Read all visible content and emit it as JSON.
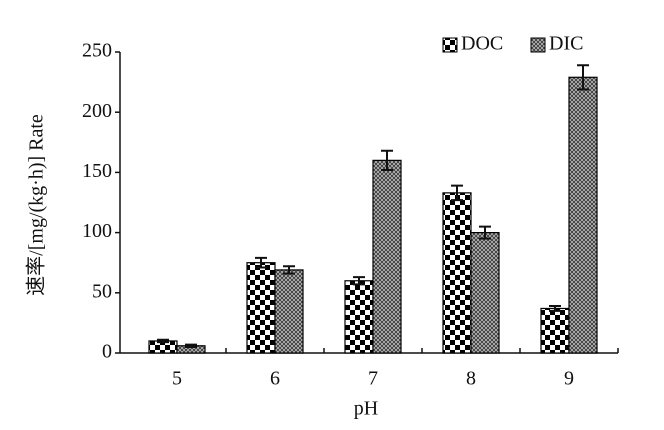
{
  "chart_data": {
    "type": "bar",
    "x_label": "pH",
    "y_label": "速率/[mg/(kg·h)] Rate",
    "categories": [
      "5",
      "6",
      "7",
      "8",
      "9"
    ],
    "series": [
      {
        "name": "DOC",
        "color": "#000000",
        "pattern": "checkerboard",
        "values": [
          10,
          75,
          60,
          133,
          37
        ],
        "errors": [
          1,
          4,
          3,
          6,
          2
        ]
      },
      {
        "name": "DIC",
        "color": "#000000",
        "pattern": "crosshatch",
        "values": [
          6,
          69,
          160,
          100,
          229
        ],
        "errors": [
          1,
          3,
          8,
          5,
          10
        ]
      }
    ],
    "ylim": [
      0,
      250
    ],
    "yticks": [
      0,
      50,
      100,
      150,
      200,
      250
    ],
    "legend": "upper right"
  }
}
